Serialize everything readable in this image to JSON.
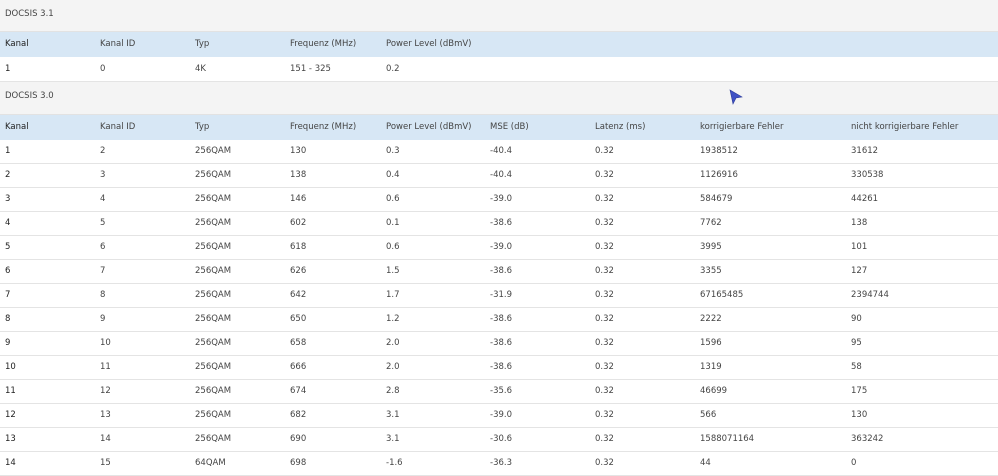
{
  "sections": [
    {
      "title": "DOCSIS 3.1",
      "table": {
        "headers": [
          "Kanal",
          "Kanal ID",
          "Typ",
          "Frequenz (MHz)",
          "Power Level (dBmV)"
        ],
        "rows": [
          [
            "1",
            "0",
            "4K",
            "151 - 325",
            "0.2"
          ]
        ]
      }
    },
    {
      "title": "DOCSIS 3.0",
      "table": {
        "headers": [
          "Kanal",
          "Kanal ID",
          "Typ",
          "Frequenz (MHz)",
          "Power Level (dBmV)",
          "MSE (dB)",
          "Latenz (ms)",
          "korrigierbare Fehler",
          "nicht korrigierbare Fehler"
        ],
        "rows": [
          [
            "1",
            "2",
            "256QAM",
            "130",
            "0.3",
            "-40.4",
            "0.32",
            "1938512",
            "31612"
          ],
          [
            "2",
            "3",
            "256QAM",
            "138",
            "0.4",
            "-40.4",
            "0.32",
            "1126916",
            "330538"
          ],
          [
            "3",
            "4",
            "256QAM",
            "146",
            "0.6",
            "-39.0",
            "0.32",
            "584679",
            "44261"
          ],
          [
            "4",
            "5",
            "256QAM",
            "602",
            "0.1",
            "-38.6",
            "0.32",
            "7762",
            "138"
          ],
          [
            "5",
            "6",
            "256QAM",
            "618",
            "0.6",
            "-39.0",
            "0.32",
            "3995",
            "101"
          ],
          [
            "6",
            "7",
            "256QAM",
            "626",
            "1.5",
            "-38.6",
            "0.32",
            "3355",
            "127"
          ],
          [
            "7",
            "8",
            "256QAM",
            "642",
            "1.7",
            "-31.9",
            "0.32",
            "67165485",
            "2394744"
          ],
          [
            "8",
            "9",
            "256QAM",
            "650",
            "1.2",
            "-38.6",
            "0.32",
            "2222",
            "90"
          ],
          [
            "9",
            "10",
            "256QAM",
            "658",
            "2.0",
            "-38.6",
            "0.32",
            "1596",
            "95"
          ],
          [
            "10",
            "11",
            "256QAM",
            "666",
            "2.0",
            "-38.6",
            "0.32",
            "1319",
            "58"
          ],
          [
            "11",
            "12",
            "256QAM",
            "674",
            "2.8",
            "-35.6",
            "0.32",
            "46699",
            "175"
          ],
          [
            "12",
            "13",
            "256QAM",
            "682",
            "3.1",
            "-39.0",
            "0.32",
            "566",
            "130"
          ],
          [
            "13",
            "14",
            "256QAM",
            "690",
            "3.1",
            "-30.6",
            "0.32",
            "1588071164",
            "363242"
          ],
          [
            "14",
            "15",
            "64QAM",
            "698",
            "-1.6",
            "-36.3",
            "0.32",
            "44",
            "0"
          ]
        ]
      }
    }
  ]
}
